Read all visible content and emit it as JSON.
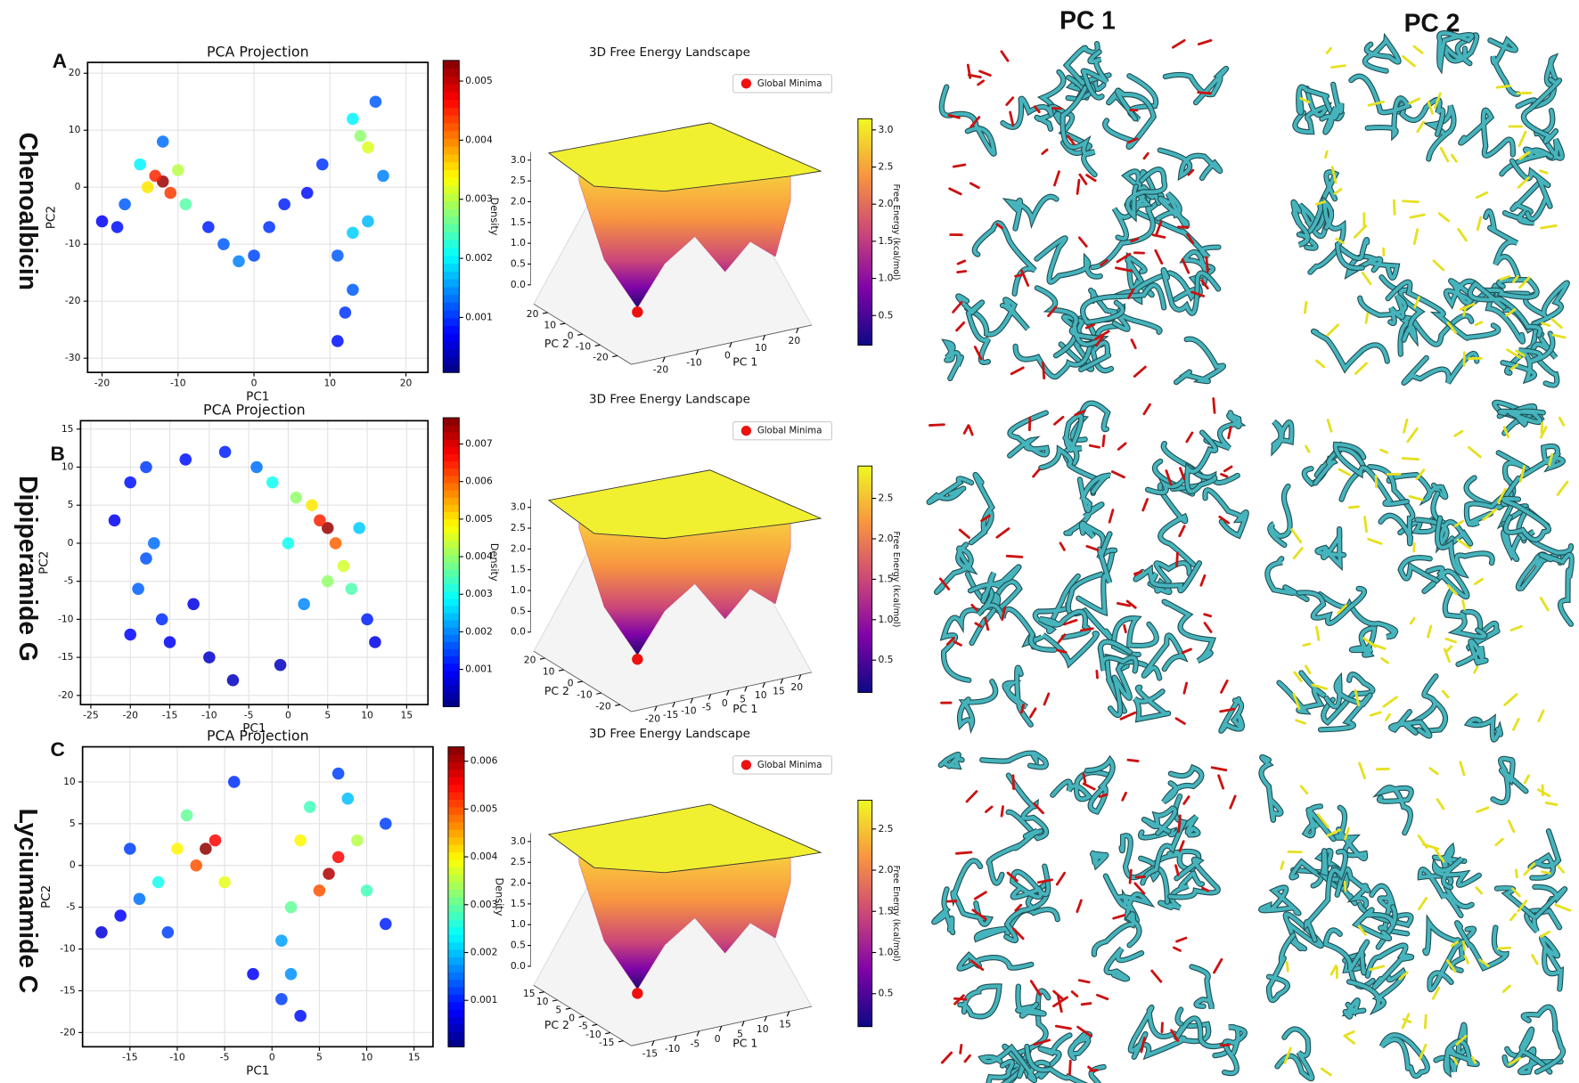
{
  "row_labels": [
    "Chenoalbicin",
    "Dipiperamide G",
    "Lyciumamide C"
  ],
  "panel_labels": [
    "A",
    "B",
    "C"
  ],
  "column_headers": [
    "PC 1",
    "PC 2"
  ],
  "chart_data": [
    {
      "type": "scatter",
      "title": "PCA Projection",
      "x_label": "PC1",
      "y_label": "PC2",
      "colormap": "jet",
      "grid": true,
      "xlim": [
        -21.9,
        22.9
      ],
      "ylim": [
        -32.5,
        21.9
      ],
      "xticks": [
        -20,
        -10,
        0,
        10,
        20
      ],
      "yticks": [
        -30,
        -20,
        -10,
        0,
        10,
        20
      ],
      "x": [
        -12,
        -13,
        -11,
        -14,
        -10,
        -15,
        -9,
        -17,
        -12,
        -18,
        -6,
        -4,
        -2,
        0,
        2,
        4,
        7,
        13,
        15,
        11,
        14,
        15,
        13,
        16,
        17,
        13,
        12,
        11,
        -20,
        9
      ],
      "y": [
        1,
        2,
        -1,
        0,
        3,
        4,
        -3,
        -3,
        8,
        -7,
        -7,
        -10,
        -13,
        -12,
        -7,
        -3,
        -1,
        -8,
        -6,
        -12,
        9,
        7,
        12,
        15,
        2,
        -18,
        -22,
        -27,
        -6,
        4
      ],
      "values": [
        0.0052,
        0.0045,
        0.0044,
        0.0035,
        0.003,
        0.002,
        0.0025,
        0.0012,
        0.0013,
        0.0008,
        0.0009,
        0.0012,
        0.0014,
        0.0011,
        0.001,
        0.0009,
        0.0008,
        0.0018,
        0.0017,
        0.0012,
        0.0028,
        0.0032,
        0.002,
        0.0012,
        0.0014,
        0.0012,
        0.001,
        0.0008,
        0.0007,
        0.001
      ],
      "colorbar": {
        "label": "Density",
        "lim": [
          7e-05,
          0.00535
        ],
        "ticks": [
          0.001,
          0.002,
          0.003,
          0.004,
          0.005
        ]
      }
    },
    {
      "type": "surface3d",
      "title": "3D Free Energy Landscape",
      "x_label": "PC 1",
      "y_label": "PC 2",
      "xlim": [
        -30,
        24
      ],
      "ylim": [
        -28,
        28
      ],
      "zlim": [
        0,
        3.2
      ],
      "xticks": [
        -20,
        -10,
        0,
        10,
        20
      ],
      "yticks": [
        -20,
        -10,
        0,
        10,
        20
      ],
      "zticks": [
        {
          "value": 0,
          "label": "0.0"
        },
        0.5,
        {
          "value": 1,
          "label": "1.0"
        },
        1.5,
        {
          "value": 2,
          "label": "2.0"
        },
        2.5,
        {
          "value": 3,
          "label": "3.0"
        }
      ],
      "minimum_marker": {
        "label": "Global Minima",
        "color": "#ee1111"
      },
      "colorbar": {
        "label": "Free Energy (kcal/mol)",
        "lim": [
          0.1,
          3.15
        ],
        "ticks": [
          0.5,
          {
            "value": 1,
            "label": "1.0"
          },
          1.5,
          {
            "value": 2,
            "label": "2.0"
          },
          2.5,
          {
            "value": 3,
            "label": "3.0"
          }
        ]
      }
    },
    {
      "type": "scatter",
      "title": "PCA Projection",
      "x_label": "PC1",
      "y_label": "PC2",
      "colormap": "jet",
      "grid": true,
      "xlim": [
        -26.3,
        17.7
      ],
      "ylim": [
        -21.2,
        16.1
      ],
      "xticks": [
        -25,
        -20,
        -15,
        -10,
        -5,
        0,
        5,
        10,
        15
      ],
      "yticks": [
        -20,
        -15,
        -10,
        -5,
        0,
        5,
        10,
        15
      ],
      "x": [
        5,
        4,
        6,
        3,
        7,
        5,
        1,
        -2,
        8,
        0,
        2,
        9,
        -4,
        10,
        -8,
        -13,
        -18,
        -20,
        -17,
        -18,
        -19,
        -16,
        -20,
        -15,
        -10,
        -7,
        -1,
        -12,
        11,
        -22
      ],
      "y": [
        2,
        3,
        0,
        5,
        -3,
        -5,
        6,
        8,
        -6,
        0,
        -8,
        2,
        10,
        -10,
        12,
        11,
        10,
        8,
        0,
        -2,
        -6,
        -10,
        -12,
        -13,
        -15,
        -18,
        -16,
        -8,
        -13,
        3
      ],
      "values": [
        0.0075,
        0.0065,
        0.006,
        0.005,
        0.0045,
        0.004,
        0.004,
        0.003,
        0.0035,
        0.003,
        0.002,
        0.0025,
        0.0018,
        0.0012,
        0.0012,
        0.0011,
        0.0014,
        0.0011,
        0.0018,
        0.0016,
        0.0017,
        0.0013,
        0.001,
        0.0009,
        0.0006,
        0.0005,
        0.0005,
        0.0008,
        0.0008,
        0.0009
      ],
      "colorbar": {
        "label": "Density",
        "lim": [
          1e-05,
          0.0077
        ],
        "ticks": [
          0.001,
          0.002,
          0.003,
          0.004,
          0.005,
          0.006,
          0.007
        ]
      }
    },
    {
      "type": "surface3d",
      "title": "3D Free Energy Landscape",
      "x_label": "PC 1",
      "y_label": "PC 2",
      "xlim": [
        -27,
        23
      ],
      "ylim": [
        -26,
        26
      ],
      "zlim": [
        0,
        3.2
      ],
      "xticks": [
        -20,
        -15,
        -10,
        -5,
        0,
        5,
        10,
        15,
        20
      ],
      "yticks": [
        -20,
        -10,
        0,
        10,
        20
      ],
      "zticks": [
        {
          "value": 0,
          "label": "0.0"
        },
        0.5,
        {
          "value": 1,
          "label": "1.0"
        },
        1.5,
        {
          "value": 2,
          "label": "2.0"
        },
        2.5,
        {
          "value": 3,
          "label": "3.0"
        }
      ],
      "minimum_marker": {
        "label": "Global Minima",
        "color": "#ee1111"
      },
      "colorbar": {
        "label": "Free Energy (kcal/mol)",
        "lim": [
          0.1,
          2.9
        ],
        "ticks": [
          0.5,
          {
            "value": 1,
            "label": "1.0"
          },
          1.5,
          {
            "value": 2,
            "label": "2.0"
          },
          2.5
        ]
      }
    },
    {
      "type": "scatter",
      "title": "PCA Projection",
      "x_label": "PC1",
      "y_label": "PC2",
      "colormap": "jet",
      "grid": true,
      "xlim": [
        -20,
        17
      ],
      "ylim": [
        -21.7,
        14.2
      ],
      "xticks": [
        -15,
        -10,
        -5,
        0,
        5,
        10,
        15
      ],
      "yticks": [
        -20,
        -15,
        -10,
        -5,
        0,
        5,
        10
      ],
      "x": [
        -7,
        -6,
        -8,
        6,
        7,
        5,
        -10,
        -5,
        3,
        9,
        2,
        10,
        -12,
        -9,
        4,
        8,
        -14,
        -15,
        -11,
        -16,
        12,
        1,
        2,
        1,
        3,
        -2,
        12,
        -4,
        7,
        -18
      ],
      "y": [
        2,
        3,
        0,
        -1,
        1,
        -3,
        2,
        -2,
        3,
        3,
        -5,
        -3,
        -2,
        6,
        7,
        8,
        -4,
        2,
        -8,
        -6,
        5,
        -9,
        -13,
        -16,
        -18,
        -13,
        -7,
        10,
        11,
        -8
      ],
      "values": [
        0.0062,
        0.0055,
        0.005,
        0.006,
        0.0055,
        0.005,
        0.004,
        0.0038,
        0.004,
        0.0035,
        0.003,
        0.0028,
        0.0025,
        0.003,
        0.0028,
        0.002,
        0.0015,
        0.0012,
        0.0012,
        0.0008,
        0.0012,
        0.0018,
        0.0017,
        0.0012,
        0.0009,
        0.0008,
        0.001,
        0.0011,
        0.0012,
        0.0006
      ],
      "colorbar": {
        "label": "Density",
        "lim": [
          3e-05,
          0.0063
        ],
        "ticks": [
          0.001,
          0.002,
          0.003,
          0.004,
          0.005,
          0.006
        ]
      }
    },
    {
      "type": "surface3d",
      "title": "3D Free Energy Landscape",
      "x_label": "PC 1",
      "y_label": "PC 2",
      "xlim": [
        -20,
        20
      ],
      "ylim": [
        -18,
        19
      ],
      "zlim": [
        0,
        3.2
      ],
      "xticks": [
        -15,
        -10,
        -5,
        0,
        5,
        10,
        15
      ],
      "yticks": [
        -15,
        -10,
        -5,
        0,
        5,
        10,
        15
      ],
      "zticks": [
        {
          "value": 0,
          "label": "0.0"
        },
        0.5,
        {
          "value": 1,
          "label": "1.0"
        },
        1.5,
        {
          "value": 2,
          "label": "2.0"
        },
        2.5,
        {
          "value": 3,
          "label": "3.0"
        }
      ],
      "minimum_marker": {
        "label": "Global Minima",
        "color": "#ee1111"
      },
      "colorbar": {
        "label": "Free Energy (kcal/mol)",
        "lim": [
          0.1,
          2.85
        ],
        "ticks": [
          0.5,
          {
            "value": 1,
            "label": "1.0"
          },
          1.5,
          {
            "value": 2,
            "label": "2.0"
          },
          2.5
        ]
      }
    }
  ]
}
